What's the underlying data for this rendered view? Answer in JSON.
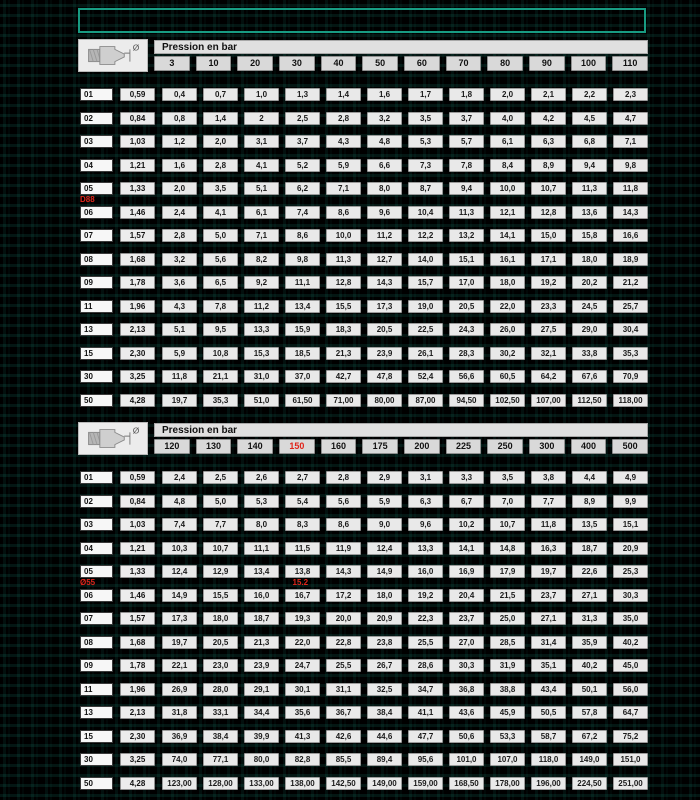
{
  "page": {
    "background": "#000000",
    "accent_teal": "#189b82",
    "red": "#e1251b",
    "diameter_symbol": "Ø"
  },
  "tables": [
    {
      "title": "Pression en bar",
      "columns": [
        "3",
        "10",
        "20",
        "30",
        "40",
        "50",
        "60",
        "70",
        "80",
        "90",
        "100",
        "110"
      ],
      "red_column_index": -1,
      "rows": [
        {
          "label": "01",
          "value": "0,59",
          "cells": [
            "0,4",
            "0,7",
            "1,0",
            "1,3",
            "1,4",
            "1,6",
            "1,7",
            "1,8",
            "2,0",
            "2,1",
            "2,2",
            "2,3"
          ]
        },
        {
          "label": "02",
          "value": "0,84",
          "cells": [
            "0,8",
            "1,4",
            "2",
            "2,5",
            "2,8",
            "3,2",
            "3,5",
            "3,7",
            "4,0",
            "4,2",
            "4,5",
            "4,7"
          ]
        },
        {
          "label": "03",
          "value": "1,03",
          "cells": [
            "1,2",
            "2,0",
            "3,1",
            "3,7",
            "4,3",
            "4,8",
            "5,3",
            "5,7",
            "6,1",
            "6,3",
            "6,8",
            "7,1"
          ]
        },
        {
          "label": "04",
          "value": "1,21",
          "cells": [
            "1,6",
            "2,8",
            "4,1",
            "5,2",
            "5,9",
            "6,6",
            "7,3",
            "7,8",
            "8,4",
            "8,9",
            "9,4",
            "9,8"
          ]
        },
        {
          "label": "05",
          "value": "1,33",
          "cells": [
            "2,0",
            "3,5",
            "5,1",
            "6,2",
            "7,1",
            "8,0",
            "8,7",
            "9,4",
            "10,0",
            "10,7",
            "11,3",
            "11,8"
          ]
        },
        {
          "label": "06",
          "value": "1,46",
          "cells": [
            "2,4",
            "4,1",
            "6,1",
            "7,4",
            "8,6",
            "9,6",
            "10,4",
            "11,3",
            "12,1",
            "12,8",
            "13,6",
            "14,3"
          ]
        },
        {
          "label": "07",
          "value": "1,57",
          "cells": [
            "2,8",
            "5,0",
            "7,1",
            "8,6",
            "10,0",
            "11,2",
            "12,2",
            "13,2",
            "14,1",
            "15,0",
            "15,8",
            "16,6"
          ]
        },
        {
          "label": "08",
          "value": "1,68",
          "cells": [
            "3,2",
            "5,6",
            "8,2",
            "9,8",
            "11,3",
            "12,7",
            "14,0",
            "15,1",
            "16,1",
            "17,1",
            "18,0",
            "18,9"
          ]
        },
        {
          "label": "09",
          "value": "1,78",
          "cells": [
            "3,6",
            "6,5",
            "9,2",
            "11,1",
            "12,8",
            "14,3",
            "15,7",
            "17,0",
            "18,0",
            "19,2",
            "20,2",
            "21,2"
          ]
        },
        {
          "label": "11",
          "value": "1,96",
          "cells": [
            "4,3",
            "7,8",
            "11,2",
            "13,4",
            "15,5",
            "17,3",
            "19,0",
            "20,5",
            "22,0",
            "23,3",
            "24,5",
            "25,7"
          ]
        },
        {
          "label": "13",
          "value": "2,13",
          "cells": [
            "5,1",
            "9,5",
            "13,3",
            "15,9",
            "18,3",
            "20,5",
            "22,5",
            "24,3",
            "26,0",
            "27,5",
            "29,0",
            "30,4"
          ]
        },
        {
          "label": "15",
          "value": "2,30",
          "cells": [
            "5,9",
            "10,8",
            "15,3",
            "18,5",
            "21,3",
            "23,9",
            "26,1",
            "28,3",
            "30,2",
            "32,1",
            "33,8",
            "35,3"
          ]
        },
        {
          "label": "30",
          "value": "3,25",
          "cells": [
            "11,8",
            "21,1",
            "31,0",
            "37,0",
            "42,7",
            "47,8",
            "52,4",
            "56,6",
            "60,5",
            "64,2",
            "67,6",
            "70,9"
          ]
        },
        {
          "label": "50",
          "value": "4,28",
          "cells": [
            "19,7",
            "35,3",
            "51,0",
            "61,50",
            "71,00",
            "80,00",
            "87,00",
            "94,50",
            "102,50",
            "107,00",
            "112,50",
            "118,00"
          ]
        }
      ],
      "annotations": [
        {
          "text": "D88",
          "row_label": "05",
          "col_index": null
        }
      ]
    },
    {
      "title": "Pression en bar",
      "columns": [
        "120",
        "130",
        "140",
        "150",
        "160",
        "175",
        "200",
        "225",
        "250",
        "300",
        "400",
        "500"
      ],
      "red_column_index": 3,
      "rows": [
        {
          "label": "01",
          "value": "0,59",
          "cells": [
            "2,4",
            "2,5",
            "2,6",
            "2,7",
            "2,8",
            "2,9",
            "3,1",
            "3,3",
            "3,5",
            "3,8",
            "4,4",
            "4,9"
          ]
        },
        {
          "label": "02",
          "value": "0,84",
          "cells": [
            "4,8",
            "5,0",
            "5,3",
            "5,4",
            "5,6",
            "5,9",
            "6,3",
            "6,7",
            "7,0",
            "7,7",
            "8,9",
            "9,9"
          ]
        },
        {
          "label": "03",
          "value": "1,03",
          "cells": [
            "7,4",
            "7,7",
            "8,0",
            "8,3",
            "8,6",
            "9,0",
            "9,6",
            "10,2",
            "10,7",
            "11,8",
            "13,5",
            "15,1"
          ]
        },
        {
          "label": "04",
          "value": "1,21",
          "cells": [
            "10,3",
            "10,7",
            "11,1",
            "11,5",
            "11,9",
            "12,4",
            "13,3",
            "14,1",
            "14,8",
            "16,3",
            "18,7",
            "20,9"
          ]
        },
        {
          "label": "05",
          "value": "1,33",
          "cells": [
            "12,4",
            "12,9",
            "13,4",
            "13,8",
            "14,3",
            "14,9",
            "16,0",
            "16,9",
            "17,9",
            "19,7",
            "22,6",
            "25,3"
          ]
        },
        {
          "label": "06",
          "value": "1,46",
          "cells": [
            "14,9",
            "15,5",
            "16,0",
            "16,7",
            "17,2",
            "18,0",
            "19,2",
            "20,4",
            "21,5",
            "23,7",
            "27,1",
            "30,3"
          ]
        },
        {
          "label": "07",
          "value": "1,57",
          "cells": [
            "17,3",
            "18,0",
            "18,7",
            "19,3",
            "20,0",
            "20,9",
            "22,3",
            "23,7",
            "25,0",
            "27,1",
            "31,3",
            "35,0"
          ]
        },
        {
          "label": "08",
          "value": "1,68",
          "cells": [
            "19,7",
            "20,5",
            "21,3",
            "22,0",
            "22,8",
            "23,8",
            "25,5",
            "27,0",
            "28,5",
            "31,4",
            "35,9",
            "40,2"
          ]
        },
        {
          "label": "09",
          "value": "1,78",
          "cells": [
            "22,1",
            "23,0",
            "23,9",
            "24,7",
            "25,5",
            "26,7",
            "28,6",
            "30,3",
            "31,9",
            "35,1",
            "40,2",
            "45,0"
          ]
        },
        {
          "label": "11",
          "value": "1,96",
          "cells": [
            "26,9",
            "28,0",
            "29,1",
            "30,1",
            "31,1",
            "32,5",
            "34,7",
            "36,8",
            "38,8",
            "43,4",
            "50,1",
            "56,0"
          ]
        },
        {
          "label": "13",
          "value": "2,13",
          "cells": [
            "31,8",
            "33,1",
            "34,4",
            "35,6",
            "36,7",
            "38,4",
            "41,1",
            "43,6",
            "45,9",
            "50,5",
            "57,8",
            "64,7"
          ]
        },
        {
          "label": "15",
          "value": "2,30",
          "cells": [
            "36,9",
            "38,4",
            "39,9",
            "41,3",
            "42,6",
            "44,6",
            "47,7",
            "50,6",
            "53,3",
            "58,7",
            "67,2",
            "75,2"
          ]
        },
        {
          "label": "30",
          "value": "3,25",
          "cells": [
            "74,0",
            "77,1",
            "80,0",
            "82,8",
            "85,5",
            "89,4",
            "95,6",
            "101,0",
            "107,0",
            "118,0",
            "149,0",
            "151,0"
          ]
        },
        {
          "label": "50",
          "value": "4,28",
          "cells": [
            "123,00",
            "128,00",
            "133,00",
            "138,00",
            "142,50",
            "149,00",
            "159,00",
            "168,50",
            "178,00",
            "196,00",
            "224,50",
            "251,00"
          ]
        }
      ],
      "annotations": [
        {
          "text": "Ø55",
          "row_label": "05",
          "col_index": null
        },
        {
          "text": "15.2",
          "row_label": "05",
          "col_index": 3
        }
      ]
    }
  ]
}
